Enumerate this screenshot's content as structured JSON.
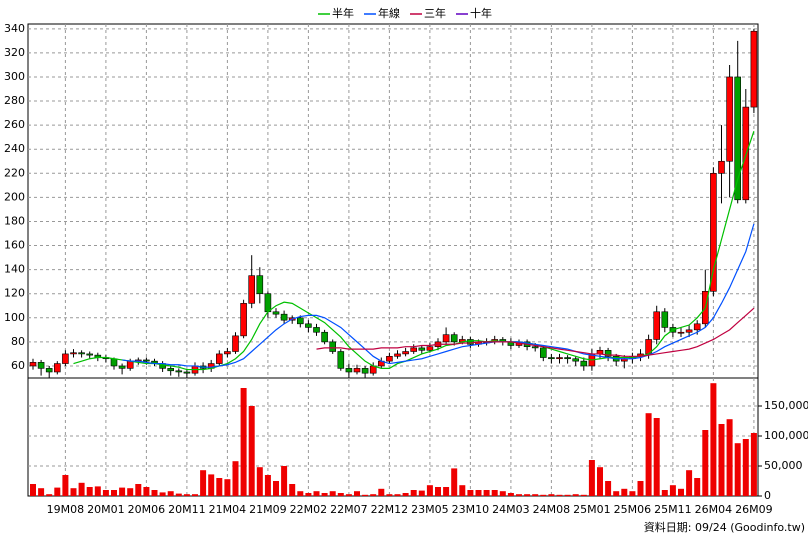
{
  "chart_data": {
    "type": "candlestick",
    "categories": [
      null,
      null,
      null,
      null,
      "19M08",
      null,
      null,
      null,
      null,
      "20M01",
      null,
      null,
      null,
      null,
      "20M06",
      null,
      null,
      null,
      null,
      "20M11",
      null,
      null,
      null,
      null,
      "21M04",
      null,
      null,
      null,
      null,
      "21M09",
      null,
      null,
      null,
      null,
      "22M02",
      null,
      null,
      null,
      null,
      "22M07",
      null,
      null,
      null,
      null,
      "22M12",
      null,
      null,
      null,
      null,
      "23M05",
      null,
      null,
      null,
      null,
      "23M10",
      null,
      null,
      null,
      null,
      "24M03",
      null,
      null,
      null,
      null,
      "24M08",
      null,
      null,
      null,
      null,
      "25M01",
      null,
      null,
      null,
      null,
      "25M06",
      null,
      null,
      null,
      null,
      "25M11",
      null,
      null,
      null,
      null,
      "26M04",
      null,
      null,
      null,
      null,
      "26M09"
    ],
    "open": [
      60,
      63,
      58,
      55,
      62,
      70,
      71,
      70,
      69,
      67,
      66,
      60,
      58,
      64,
      65,
      64,
      62,
      58,
      56,
      55,
      54,
      60,
      58,
      62,
      70,
      72,
      85,
      112,
      135,
      120,
      105,
      103,
      98,
      100,
      95,
      92,
      88,
      80,
      72,
      58,
      55,
      58,
      54,
      60,
      64,
      68,
      70,
      72,
      75,
      73,
      76,
      80,
      86,
      80,
      82,
      78,
      80,
      80,
      82,
      80,
      77,
      80,
      76,
      75,
      67,
      66,
      67,
      66,
      64,
      60,
      70,
      73,
      68,
      64,
      66,
      68,
      70,
      82,
      105,
      92,
      88,
      88,
      90,
      95,
      122,
      220,
      230,
      300,
      198,
      275
    ],
    "high": [
      66,
      65,
      60,
      64,
      73,
      74,
      73,
      72,
      71,
      69,
      67,
      62,
      66,
      67,
      67,
      66,
      64,
      60,
      58,
      57,
      63,
      63,
      65,
      73,
      75,
      88,
      115,
      152,
      142,
      122,
      108,
      106,
      102,
      102,
      98,
      95,
      90,
      82,
      74,
      62,
      61,
      60,
      63,
      67,
      71,
      73,
      75,
      78,
      77,
      79,
      83,
      92,
      88,
      85,
      84,
      82,
      83,
      85,
      84,
      83,
      82,
      82,
      79,
      77,
      70,
      70,
      69,
      68,
      67,
      74,
      76,
      75,
      70,
      69,
      71,
      74,
      86,
      110,
      108,
      95,
      92,
      94,
      98,
      140,
      225,
      260,
      310,
      330,
      290,
      340
    ],
    "low": [
      57,
      52,
      50,
      53,
      60,
      67,
      67,
      66,
      64,
      63,
      57,
      53,
      56,
      61,
      61,
      60,
      55,
      52,
      51,
      50,
      52,
      54,
      55,
      60,
      67,
      70,
      83,
      108,
      112,
      100,
      100,
      95,
      95,
      92,
      88,
      85,
      78,
      70,
      56,
      50,
      53,
      50,
      52,
      58,
      62,
      66,
      68,
      70,
      70,
      71,
      73,
      77,
      77,
      78,
      75,
      76,
      77,
      78,
      77,
      74,
      75,
      73,
      72,
      64,
      62,
      62,
      62,
      60,
      56,
      56,
      66,
      64,
      60,
      58,
      62,
      64,
      66,
      78,
      88,
      84,
      84,
      84,
      86,
      92,
      118,
      195,
      200,
      195,
      195,
      270
    ],
    "close": [
      63,
      58,
      55,
      62,
      70,
      71,
      70,
      69,
      67,
      66,
      60,
      58,
      64,
      65,
      64,
      62,
      58,
      56,
      55,
      54,
      60,
      58,
      62,
      70,
      72,
      85,
      112,
      135,
      120,
      105,
      103,
      98,
      100,
      95,
      92,
      88,
      80,
      72,
      58,
      55,
      58,
      54,
      60,
      64,
      68,
      70,
      72,
      75,
      73,
      76,
      80,
      86,
      80,
      82,
      78,
      80,
      80,
      82,
      80,
      77,
      80,
      76,
      75,
      67,
      66,
      67,
      66,
      64,
      60,
      70,
      73,
      68,
      64,
      66,
      68,
      70,
      82,
      105,
      92,
      88,
      88,
      90,
      95,
      122,
      220,
      230,
      300,
      198,
      275,
      338
    ],
    "up_color": "#ff0000",
    "down_color": "#00a000",
    "volume": [
      20000,
      13000,
      3000,
      14000,
      35000,
      13000,
      22000,
      15000,
      16000,
      10000,
      10000,
      14000,
      13000,
      20000,
      15000,
      10000,
      6000,
      8000,
      4000,
      3000,
      3000,
      43000,
      36000,
      30000,
      28000,
      58000,
      180000,
      150000,
      48000,
      35000,
      25000,
      50000,
      20000,
      8000,
      5000,
      8000,
      5000,
      8000,
      5000,
      3000,
      8000,
      2000,
      3000,
      12000,
      3000,
      3000,
      5000,
      10000,
      9000,
      18000,
      15000,
      15000,
      46000,
      18000,
      10000,
      10000,
      10000,
      10000,
      8000,
      5000,
      3000,
      3000,
      3000,
      2000,
      3000,
      2000,
      2000,
      3000,
      2000,
      60000,
      48000,
      25000,
      8000,
      12000,
      8000,
      25000,
      138000,
      130000,
      10000,
      18000,
      12000,
      43000,
      30000,
      110000,
      188000,
      120000,
      128000,
      88000,
      95000,
      105000
    ],
    "volume_color": "#ee0000",
    "series": [
      {
        "name": "半年",
        "color": "#00c000",
        "values": [
          null,
          null,
          null,
          null,
          null,
          62,
          64,
          66,
          67,
          67,
          66,
          65,
          64,
          63,
          62,
          62,
          61,
          60,
          59,
          57,
          57,
          57,
          58,
          60,
          62,
          66,
          72,
          82,
          95,
          105,
          110,
          113,
          112,
          108,
          104,
          100,
          96,
          90,
          84,
          76,
          70,
          64,
          60,
          58,
          58,
          62,
          64,
          67,
          70,
          72,
          74,
          77,
          78,
          80,
          81,
          81,
          80,
          81,
          80,
          80,
          80,
          79,
          78,
          76,
          74,
          72,
          70,
          68,
          66,
          65,
          66,
          67,
          67,
          67,
          67,
          68,
          70,
          76,
          85,
          90,
          92,
          94,
          100,
          108,
          140,
          165,
          190,
          215,
          235,
          255
        ]
      },
      {
        "name": "年線",
        "color": "#0050ff",
        "values": [
          null,
          null,
          null,
          null,
          null,
          null,
          null,
          null,
          null,
          null,
          null,
          65,
          64,
          64,
          63,
          62,
          62,
          61,
          61,
          60,
          60,
          59,
          59,
          60,
          61,
          63,
          66,
          72,
          78,
          84,
          90,
          95,
          99,
          101,
          102,
          102,
          100,
          96,
          92,
          86,
          80,
          74,
          68,
          64,
          62,
          63,
          64,
          65,
          66,
          68,
          70,
          72,
          74,
          76,
          77,
          78,
          79,
          80,
          80,
          80,
          80,
          79,
          78,
          77,
          76,
          75,
          74,
          72,
          70,
          69,
          68,
          67,
          66,
          66,
          66,
          67,
          69,
          72,
          76,
          79,
          82,
          85,
          88,
          92,
          100,
          112,
          125,
          140,
          155,
          178
        ]
      },
      {
        "name": "三年",
        "color": "#c00040",
        "values": [
          null,
          null,
          null,
          null,
          null,
          null,
          null,
          null,
          null,
          null,
          null,
          null,
          null,
          null,
          null,
          null,
          null,
          null,
          null,
          null,
          null,
          null,
          null,
          null,
          null,
          null,
          null,
          null,
          null,
          null,
          null,
          null,
          null,
          null,
          null,
          74,
          75,
          75,
          75,
          74,
          74,
          74,
          74,
          75,
          75,
          75,
          76,
          76,
          77,
          77,
          78,
          78,
          78,
          79,
          79,
          80,
          80,
          80,
          80,
          80,
          79,
          78,
          77,
          76,
          75,
          74,
          73,
          72,
          71,
          70,
          70,
          69,
          69,
          68,
          68,
          68,
          69,
          70,
          71,
          72,
          73,
          74,
          76,
          79,
          82,
          86,
          90,
          96,
          102,
          108
        ]
      },
      {
        "name": "十年",
        "color": "#6000c0",
        "values": [
          null,
          null,
          null,
          null,
          null,
          null,
          null,
          null,
          null,
          null,
          null,
          null,
          null,
          null,
          null,
          null,
          null,
          null,
          null,
          null,
          null,
          null,
          null,
          null,
          null,
          null,
          null,
          null,
          null,
          null,
          null,
          null,
          null,
          null,
          null,
          null,
          null,
          null,
          null,
          null,
          null,
          null,
          null,
          null,
          null,
          null,
          null,
          null,
          null,
          null,
          null,
          null,
          null,
          null,
          null,
          null,
          null,
          null,
          null,
          null,
          null,
          null,
          null,
          null,
          null,
          null,
          null,
          null,
          null,
          null,
          null,
          null,
          null,
          null,
          null,
          null,
          null,
          null,
          null,
          null,
          null,
          null,
          null,
          null,
          null,
          null,
          null,
          null,
          null,
          null
        ]
      }
    ],
    "ylim": [
      50,
      344
    ],
    "yticks": [
      60,
      80,
      100,
      120,
      140,
      160,
      180,
      200,
      220,
      240,
      260,
      280,
      300,
      320,
      340
    ],
    "y2lim": [
      0,
      190000
    ],
    "y2ticks": [
      0,
      {
        "value": 50000,
        "label": "50,000"
      },
      {
        "value": 100000,
        "label": "100,000"
      },
      {
        "value": 150000,
        "label": "150,000"
      }
    ],
    "grid": true,
    "source": "資料日期: 09/24  (Goodinfo.tw)"
  }
}
